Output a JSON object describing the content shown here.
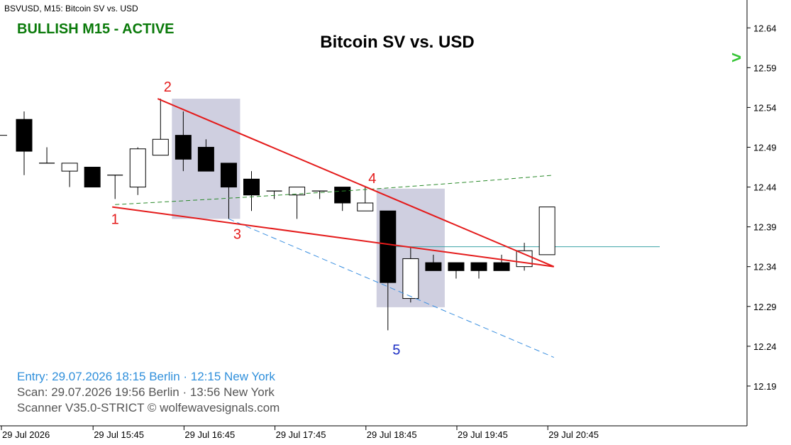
{
  "header": {
    "symbol_line": "BSVUSD, M15:  Bitcoin SV vs. USD",
    "status": "BULLISH M15 - ACTIVE",
    "title": "Bitcoin SV vs. USD",
    "price_arrow": ">"
  },
  "footer": {
    "entry": "Entry: 29.07.2026  18:15 Berlin · 12:15 New York",
    "scan": "Scan:  29.07.2026  19:56 Berlin · 13:56 New York",
    "credit": "Scanner V35.0-STRICT   © wolfewavesignals.com"
  },
  "colors": {
    "bull_candle": "#ffffff",
    "bear_candle": "#000000",
    "wave_line": "#e41b1b",
    "wave_label": "#e41b1b",
    "point5_label": "#1d2fc4",
    "target_line": "#3a8fe0",
    "epa_line": "#2a8a2a",
    "price_line": "#39a3a6",
    "zone": "#cfcfe0",
    "status": "#0a7a0a",
    "entry": "#2f8fdb",
    "grey_text": "#555555"
  },
  "chart_data": {
    "type": "candlestick",
    "timeframe": "M15",
    "ylim": [
      12.14,
      12.675
    ],
    "y_ticks": [
      "12.64",
      "12.59",
      "12.54",
      "12.49",
      "12.44",
      "12.39",
      "12.34",
      "12.29",
      "12.24",
      "12.19"
    ],
    "x_ticks": [
      {
        "index": 0,
        "label": "29 Jul 2026"
      },
      {
        "index": 4,
        "label": "29 Jul 15:45"
      },
      {
        "index": 8,
        "label": "29 Jul 16:45"
      },
      {
        "index": 12,
        "label": "29 Jul 17:45"
      },
      {
        "index": 16,
        "label": "29 Jul 18:45"
      },
      {
        "index": 20,
        "label": "29 Jul 19:45"
      },
      {
        "index": 24,
        "label": "29 Jul 20:45"
      }
    ],
    "candles": [
      {
        "i": -1,
        "o": 12.505,
        "h": 12.505,
        "l": 12.505,
        "c": 12.505
      },
      {
        "i": 0,
        "o": 12.525,
        "h": 12.535,
        "l": 12.455,
        "c": 12.485
      },
      {
        "i": 1,
        "o": 12.47,
        "h": 12.49,
        "l": 12.47,
        "c": 12.47
      },
      {
        "i": 2,
        "o": 12.46,
        "h": 12.47,
        "l": 12.44,
        "c": 12.47
      },
      {
        "i": 3,
        "o": 12.465,
        "h": 12.465,
        "l": 12.44,
        "c": 12.44
      },
      {
        "i": 4,
        "o": 12.455,
        "h": 12.455,
        "l": 12.425,
        "c": 12.455
      },
      {
        "i": 5,
        "o": 12.44,
        "h": 12.49,
        "l": 12.43,
        "c": 12.488
      },
      {
        "i": 6,
        "o": 12.48,
        "h": 12.551,
        "l": 12.48,
        "c": 12.5
      },
      {
        "i": 7,
        "o": 12.505,
        "h": 12.535,
        "l": 12.46,
        "c": 12.475
      },
      {
        "i": 8,
        "o": 12.49,
        "h": 12.5,
        "l": 12.46,
        "c": 12.46
      },
      {
        "i": 9,
        "o": 12.47,
        "h": 12.47,
        "l": 12.4,
        "c": 12.44
      },
      {
        "i": 10,
        "o": 12.45,
        "h": 12.46,
        "l": 12.41,
        "c": 12.43
      },
      {
        "i": 11,
        "o": 12.435,
        "h": 12.435,
        "l": 12.425,
        "c": 12.435
      },
      {
        "i": 12,
        "o": 12.43,
        "h": 12.44,
        "l": 12.4,
        "c": 12.44
      },
      {
        "i": 13,
        "o": 12.435,
        "h": 12.435,
        "l": 12.425,
        "c": 12.435
      },
      {
        "i": 14,
        "o": 12.44,
        "h": 12.44,
        "l": 12.41,
        "c": 12.42
      },
      {
        "i": 15,
        "o": 12.41,
        "h": 12.44,
        "l": 12.41,
        "c": 12.42
      },
      {
        "i": 16,
        "o": 12.41,
        "h": 12.41,
        "l": 12.26,
        "c": 12.32
      },
      {
        "i": 17,
        "o": 12.3,
        "h": 12.365,
        "l": 12.295,
        "c": 12.35
      },
      {
        "i": 18,
        "o": 12.345,
        "h": 12.355,
        "l": 12.335,
        "c": 12.335
      },
      {
        "i": 19,
        "o": 12.345,
        "h": 12.345,
        "l": 12.325,
        "c": 12.335
      },
      {
        "i": 20,
        "o": 12.345,
        "h": 12.345,
        "l": 12.325,
        "c": 12.335
      },
      {
        "i": 21,
        "o": 12.345,
        "h": 12.355,
        "l": 12.335,
        "c": 12.335
      },
      {
        "i": 22,
        "o": 12.34,
        "h": 12.37,
        "l": 12.335,
        "c": 12.36
      },
      {
        "i": 23,
        "o": 12.355,
        "h": 12.415,
        "l": 12.355,
        "c": 12.415
      }
    ],
    "wave_points": [
      {
        "label": "1",
        "i": 4,
        "price": 12.415
      },
      {
        "label": "2",
        "i": 6,
        "price": 12.551
      },
      {
        "label": "3",
        "i": 9,
        "price": 12.4
      },
      {
        "label": "4",
        "i": 15,
        "price": 12.438
      },
      {
        "label": "5",
        "i": 16,
        "price": 12.26
      }
    ],
    "wave_lines": [
      {
        "from": [
          4,
          12.415
        ],
        "to": [
          23.3,
          12.34
        ]
      },
      {
        "from": [
          6,
          12.551
        ],
        "to": [
          23.3,
          12.34
        ]
      }
    ],
    "target_line": {
      "from": [
        9,
        12.4
      ],
      "to": [
        23.3,
        12.226
      ]
    },
    "epa_line": {
      "from": [
        4,
        12.418
      ],
      "mid": [
        15,
        12.44
      ],
      "to": [
        23.3,
        12.455
      ]
    },
    "zones": [
      {
        "i0": 6.5,
        "i1": 9.5,
        "p0": 12.4,
        "p1": 12.551
      },
      {
        "i0": 15.5,
        "i1": 18.5,
        "p0": 12.289,
        "p1": 12.438
      }
    ],
    "current_price": 12.365
  }
}
